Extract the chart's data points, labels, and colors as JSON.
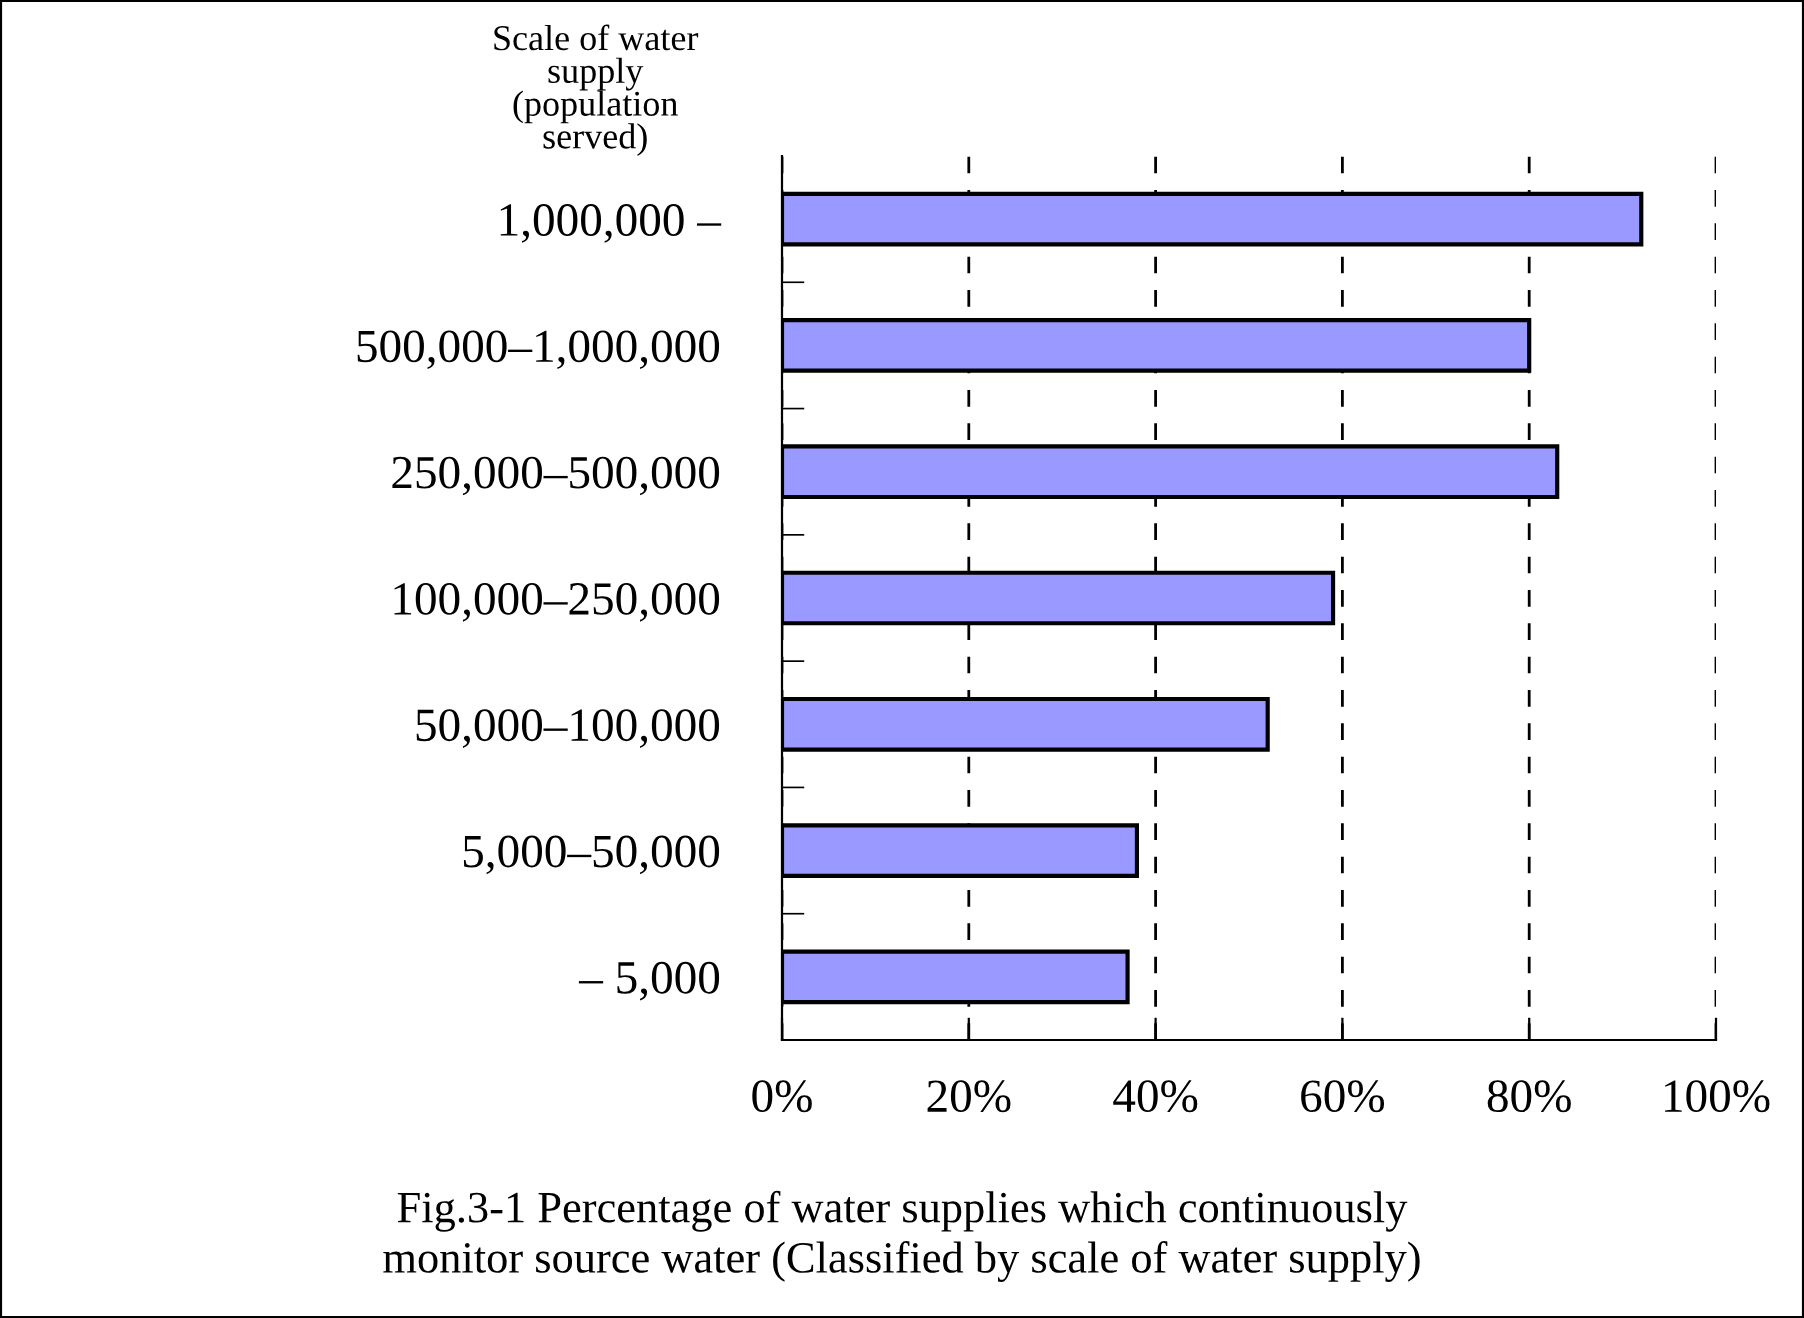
{
  "chart_data": {
    "type": "bar",
    "orientation": "horizontal",
    "title": "Fig.3-1 Percentage of water supplies which continuously\nmonitor source water (Classified by scale of water supply)",
    "ylabel": "Scale of water\nsupply\n(population\nserved)",
    "categories": [
      "1,000,000 –",
      "500,000–1,000,000",
      "250,000–500,000",
      "100,000–250,000",
      "50,000–100,000",
      "5,000–50,000",
      "– 5,000"
    ],
    "values": [
      92,
      80,
      83,
      59,
      52,
      38,
      37
    ],
    "color": "#9999ff",
    "xlim": [
      0,
      100
    ],
    "xticks": [
      {
        "value": 0,
        "label": "0%"
      },
      {
        "value": 20,
        "label": "20%"
      },
      {
        "value": 40,
        "label": "40%"
      },
      {
        "value": 60,
        "label": "60%"
      },
      {
        "value": 80,
        "label": "80%"
      },
      {
        "value": 100,
        "label": "100%"
      }
    ],
    "grid": "x"
  }
}
